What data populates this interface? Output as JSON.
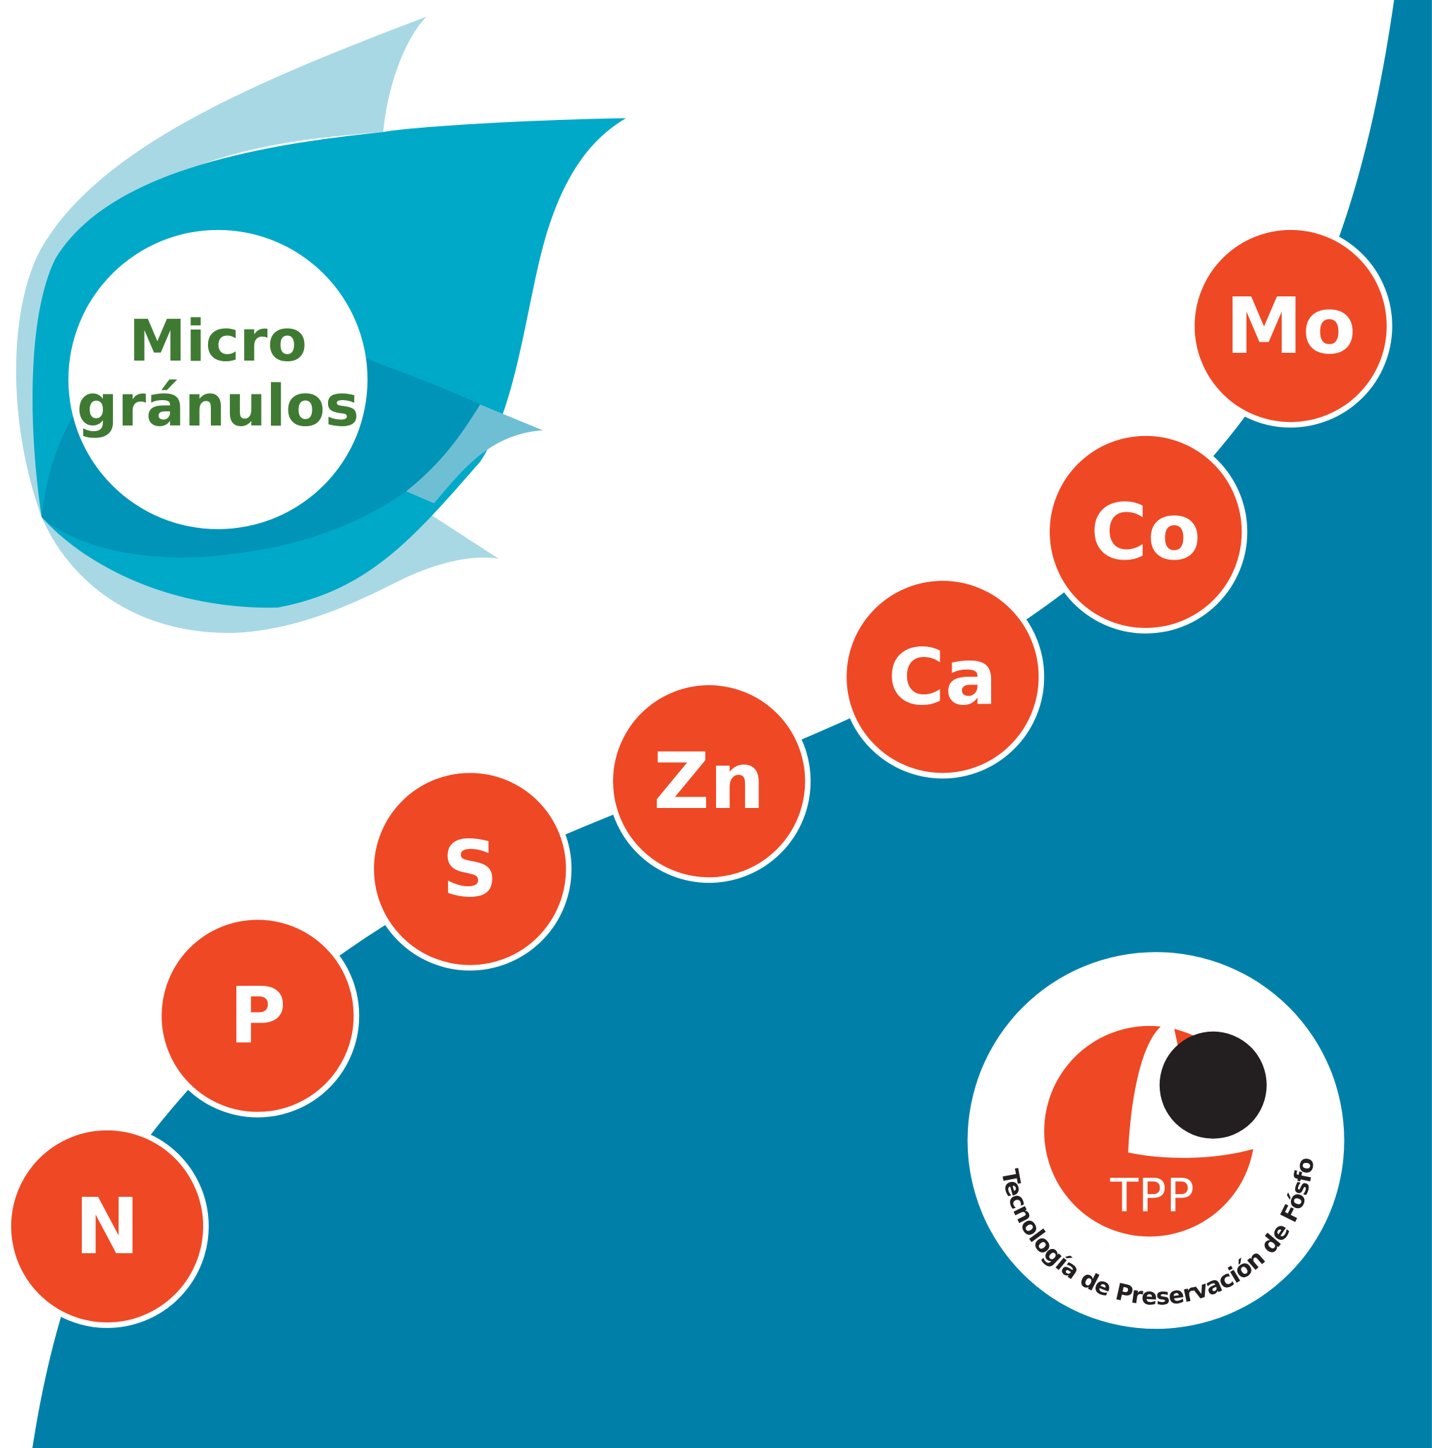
{
  "title": {
    "lines": [
      "Micro",
      "gránulos"
    ]
  },
  "elements": [
    "N",
    "P",
    "S",
    "Zn",
    "Ca",
    "Co",
    "Mo"
  ],
  "logo": {
    "label": "TPP",
    "ring_text": "Tecnología de Preservación de Fósforo"
  }
}
